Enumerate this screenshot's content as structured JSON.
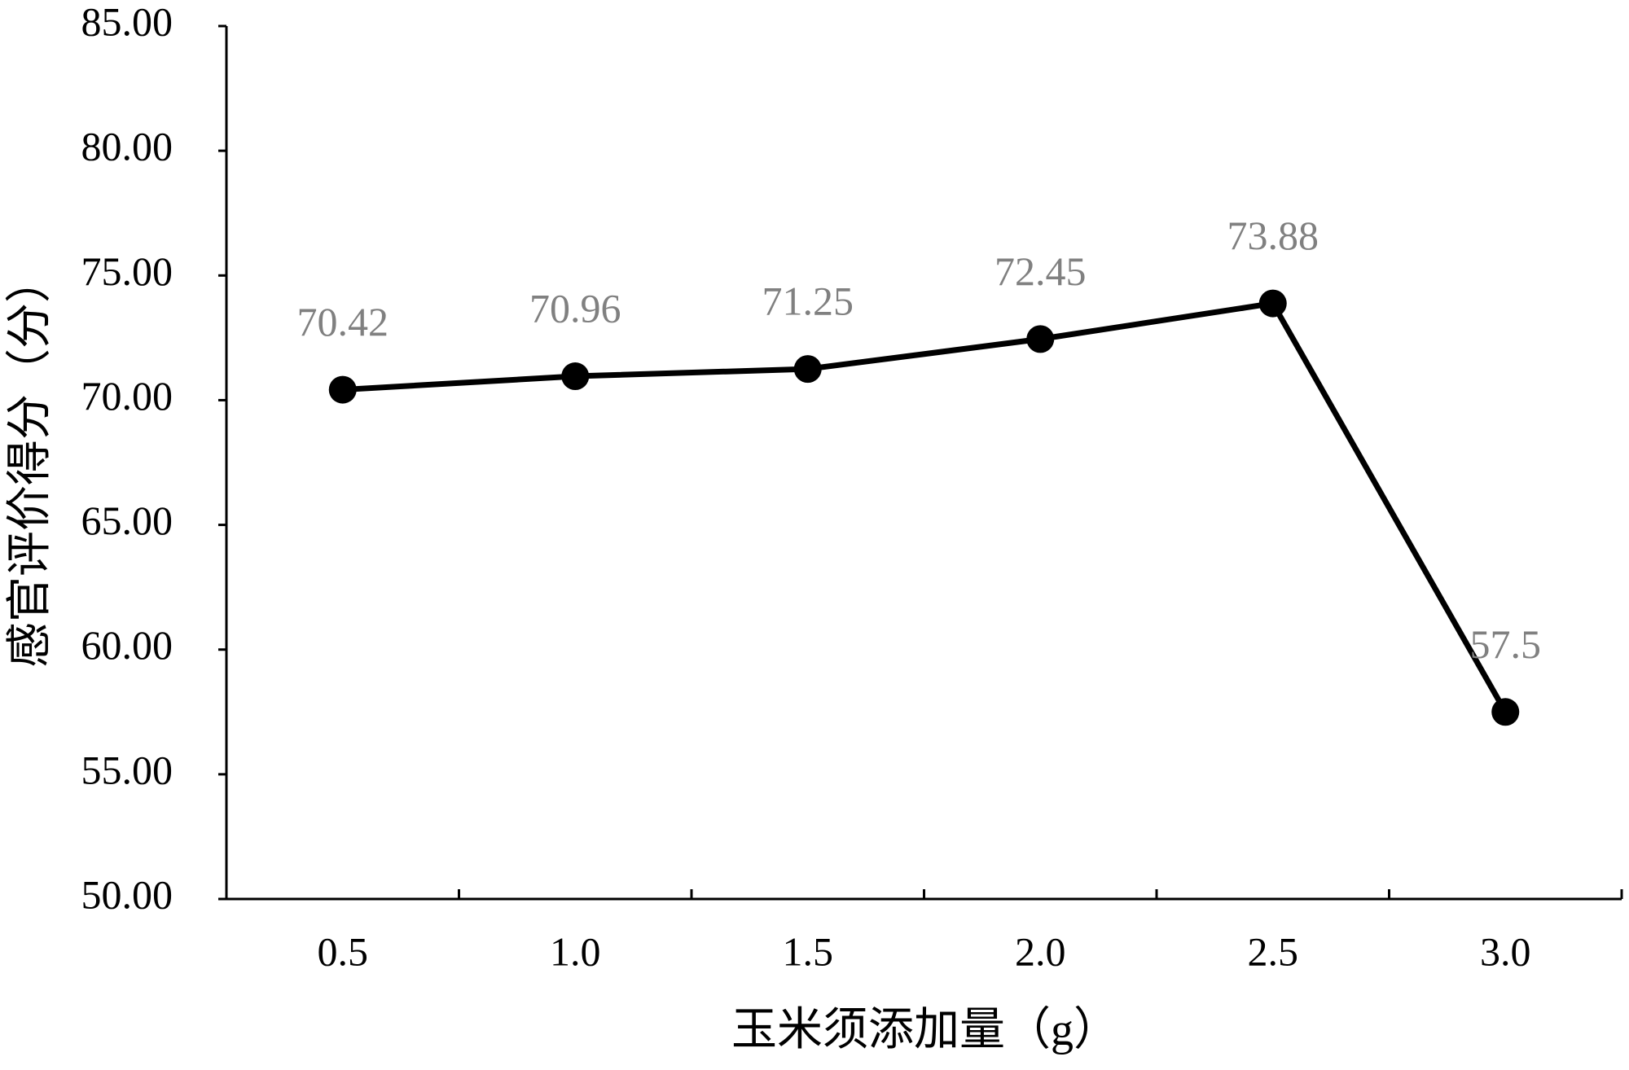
{
  "chart_data": {
    "type": "line",
    "x_label": "玉米须添加量（g）",
    "y_label": "感官评价得分（分）",
    "categories": [
      "0.5",
      "1.0",
      "1.5",
      "2.0",
      "2.5",
      "3.0"
    ],
    "values": [
      70.42,
      70.96,
      71.25,
      72.45,
      73.88,
      57.5
    ],
    "color": "#000000",
    "label_color": "#808080",
    "ylim": [
      50,
      85
    ],
    "yticks": [
      {
        "value": 50,
        "label": "50.00"
      },
      {
        "value": 55,
        "label": "55.00"
      },
      {
        "value": 60,
        "label": "60.00"
      },
      {
        "value": 65,
        "label": "65.00"
      },
      {
        "value": 70,
        "label": "70.00"
      },
      {
        "value": 75,
        "label": "75.00"
      },
      {
        "value": 80,
        "label": "80.00"
      },
      {
        "value": 85,
        "label": "85.00"
      }
    ],
    "grid": false
  }
}
